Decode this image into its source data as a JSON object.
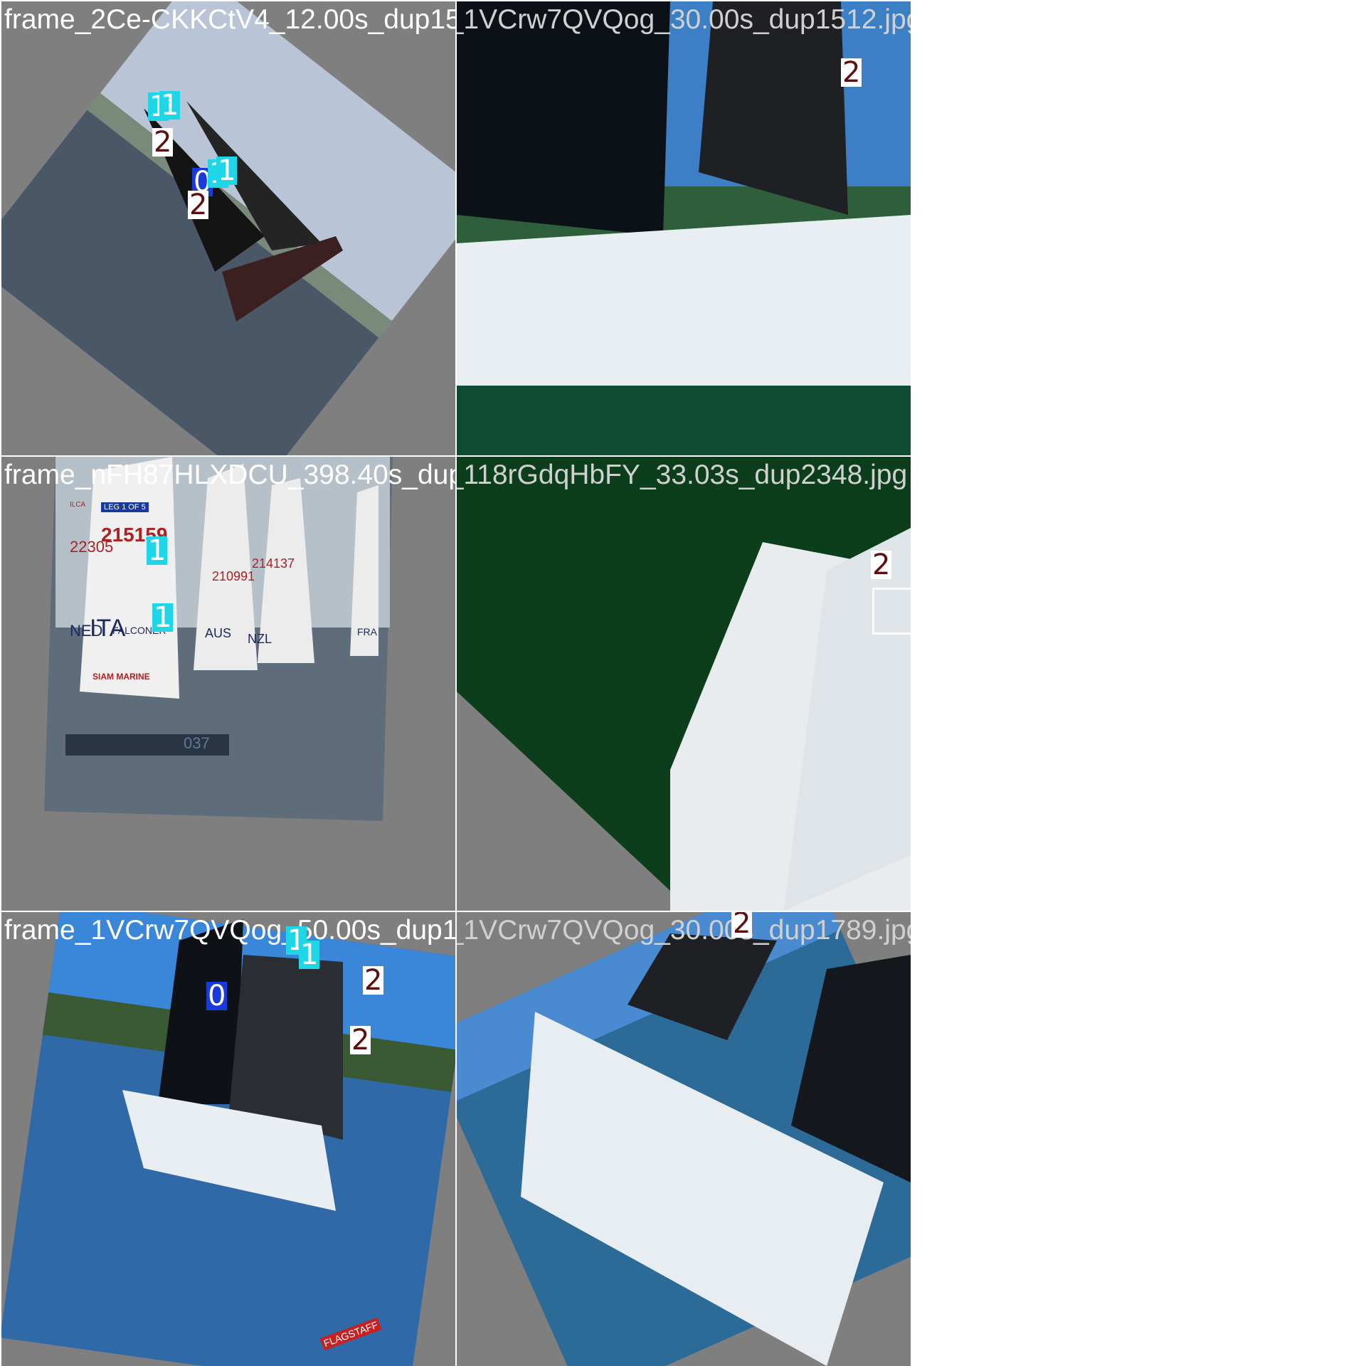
{
  "mosaic": {
    "tiles": [
      {
        "filename": "frame_2Ce-CKKCtV4_12.00s_dup1532.jpg",
        "labels": [
          "1",
          "1",
          "2",
          "0",
          "1",
          "1",
          "2"
        ]
      },
      {
        "filename": "frame_1VCrw7QVQog_30.00s_dup1512.jpg",
        "labels": [
          "2"
        ]
      },
      {
        "filename": "frame_nFH87HLXDCU_398.40s_dup1126.jpg",
        "labels": [
          "1",
          "1"
        ],
        "overlay_text": [
          "LEG 1 OF 5",
          "ILCA",
          "215159",
          "22305",
          "NED",
          "ITA",
          "FALCONER",
          "SIAM MARINE",
          "210991",
          "214137",
          "AUS",
          "NZL",
          "FRA",
          "037"
        ]
      },
      {
        "filename": "frame_118rGdqHbFY_33.03s_dup2348.jpg",
        "labels": [
          "2"
        ]
      },
      {
        "filename": "frame_1VCrw7QVQog_50.00s_dup1836.jpg",
        "labels": [
          "1",
          "1",
          "0",
          "2",
          "2"
        ],
        "overlay_text": [
          "FLAGSTAFF"
        ]
      },
      {
        "filename": "frame_1VCrw7QVQog_30.00s_dup1789.jpg",
        "labels": [
          "2"
        ]
      }
    ]
  },
  "colors": {
    "background": "#7f7f7f",
    "class0": "#1a3bdc",
    "class1": "#1ed6e6",
    "class2_bg": "#ffffff",
    "class2_text": "#5a1010"
  }
}
